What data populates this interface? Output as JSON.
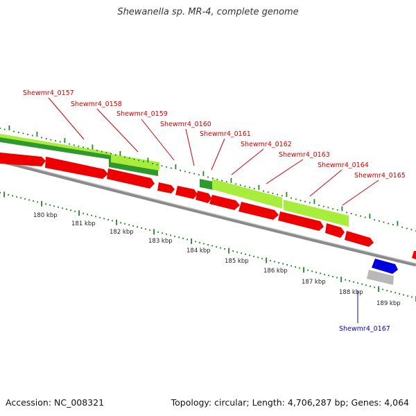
{
  "title": "Shewanella sp. MR-4, complete genome",
  "footer": {
    "accession": "Accession: NC_008321",
    "summary": "Topology: circular; Length: 4,706,287 bp; Genes: 4,064"
  },
  "colors": {
    "cds_red": "#ee0000",
    "gene_green_light": "#a8ec3c",
    "gene_green_dark": "#2e9a2e",
    "blue_gene": "#0000dd",
    "grey_gene": "#b8b8b8",
    "backbone": "#888888",
    "tick_green": "#1e8a1e",
    "label_red": "#cc0000",
    "label_blue": "#0000cc"
  },
  "kbp_labels": [
    "180 kbp",
    "181 kbp",
    "182 kbp",
    "183 kbp",
    "184 kbp",
    "185 kbp",
    "186 kbp",
    "187 kbp",
    "188 kbp",
    "189 kbp"
  ],
  "gene_labels": [
    {
      "text": "Shewmr4_0157",
      "strand": "red"
    },
    {
      "text": "Shewmr4_0158",
      "strand": "red"
    },
    {
      "text": "Shewmr4_0159",
      "strand": "red"
    },
    {
      "text": "Shewmr4_0160",
      "strand": "red"
    },
    {
      "text": "Shewmr4_0161",
      "strand": "red"
    },
    {
      "text": "Shewmr4_0162",
      "strand": "red"
    },
    {
      "text": "Shewmr4_0163",
      "strand": "red"
    },
    {
      "text": "Shewmr4_0164",
      "strand": "red"
    },
    {
      "text": "Shewmr4_0165",
      "strand": "red"
    },
    {
      "text": "Shewmr4_0167",
      "strand": "blue"
    }
  ]
}
